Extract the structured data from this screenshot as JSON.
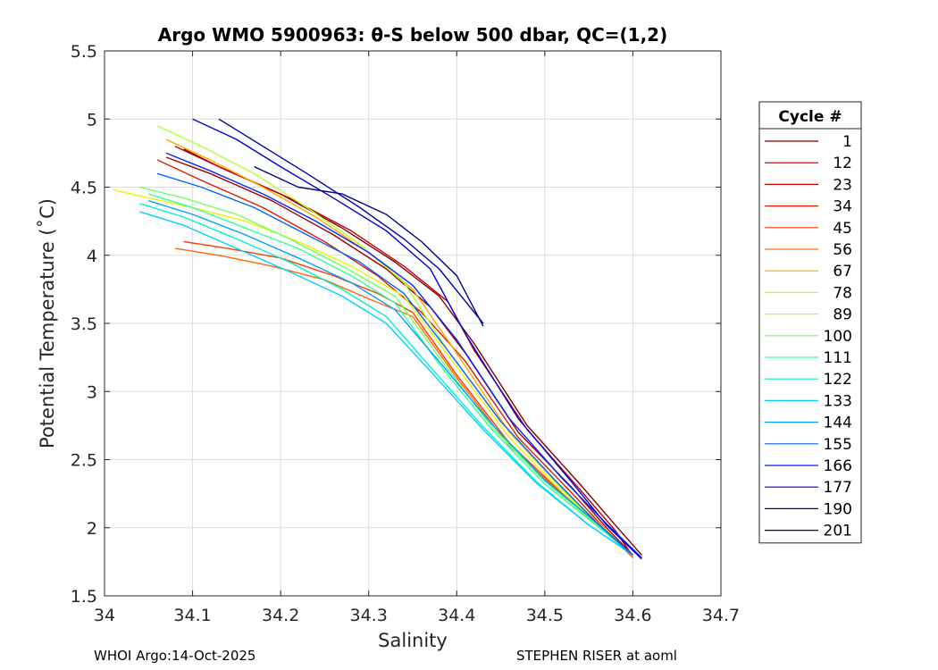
{
  "chart_data": {
    "type": "line",
    "title": "Argo WMO 5900963: θ-S below 500 dbar,  QC=(1,2)",
    "xlabel": "Salinity",
    "ylabel": "Potential Temperature (˚C)",
    "xlim": [
      34.0,
      34.7
    ],
    "ylim": [
      1.5,
      5.5
    ],
    "xticks": [
      34,
      34.1,
      34.2,
      34.3,
      34.4,
      34.5,
      34.6,
      34.7
    ],
    "xtick_labels": [
      "34",
      "34.1",
      "34.2",
      "34.3",
      "34.4",
      "34.5",
      "34.6",
      "34.7"
    ],
    "yticks": [
      1.5,
      2,
      2.5,
      3,
      3.5,
      4,
      4.5,
      5,
      5.5
    ],
    "ytick_labels": [
      "1.5",
      "2",
      "2.5",
      "3",
      "3.5",
      "4",
      "4.5",
      "5",
      "5.5"
    ],
    "grid": true,
    "legend": {
      "title": "Cycle #",
      "placement": "outside-right",
      "entries": [
        {
          "label": "1",
          "color": "#800000"
        },
        {
          "label": "12",
          "color": "#a00000"
        },
        {
          "label": "23",
          "color": "#c00000"
        },
        {
          "label": "34",
          "color": "#e01a00"
        },
        {
          "label": "45",
          "color": "#ff3c00"
        },
        {
          "label": "56",
          "color": "#ff6a00"
        },
        {
          "label": "67",
          "color": "#ffa800"
        },
        {
          "label": "78",
          "color": "#f0f000"
        },
        {
          "label": "89",
          "color": "#b0ff30"
        },
        {
          "label": "100",
          "color": "#70ff60"
        },
        {
          "label": "111",
          "color": "#30ffa0"
        },
        {
          "label": "122",
          "color": "#00f0d0"
        },
        {
          "label": "133",
          "color": "#00d0ff"
        },
        {
          "label": "144",
          "color": "#00a0ff"
        },
        {
          "label": "155",
          "color": "#0064ff"
        },
        {
          "label": "166",
          "color": "#0028ff"
        },
        {
          "label": "177",
          "color": "#0000d8"
        },
        {
          "label": "190",
          "color": "#0000a8"
        },
        {
          "label": "201",
          "color": "#000080"
        }
      ]
    },
    "series": [
      {
        "name": "1",
        "color": "#800000",
        "x": [
          34.09,
          34.13,
          34.2,
          34.27,
          34.33,
          34.38,
          34.42,
          34.48,
          34.54,
          34.58,
          34.61
        ],
        "y": [
          4.78,
          4.65,
          4.45,
          4.2,
          3.95,
          3.7,
          3.35,
          2.75,
          2.32,
          2.02,
          1.8
        ]
      },
      {
        "name": "12",
        "color": "#a00000",
        "x": [
          34.07,
          34.12,
          34.19,
          34.26,
          34.32,
          34.37,
          34.41,
          34.47,
          34.53,
          34.57,
          34.6
        ],
        "y": [
          4.72,
          4.6,
          4.4,
          4.15,
          3.9,
          3.62,
          3.28,
          2.7,
          2.3,
          2.0,
          1.8
        ]
      },
      {
        "name": "23",
        "color": "#c00000",
        "x": [
          34.08,
          34.14,
          34.21,
          34.28,
          34.34,
          34.39,
          34.42,
          34.48,
          34.54,
          34.58,
          34.6
        ],
        "y": [
          4.8,
          4.62,
          4.42,
          4.18,
          3.92,
          3.66,
          3.3,
          2.72,
          2.28,
          1.98,
          1.79
        ]
      },
      {
        "name": "34",
        "color": "#e01a00",
        "x": [
          34.06,
          34.11,
          34.18,
          34.25,
          34.31,
          34.36,
          34.41,
          34.47,
          34.53,
          34.57,
          34.6
        ],
        "y": [
          4.7,
          4.55,
          4.35,
          4.1,
          3.85,
          3.58,
          3.22,
          2.66,
          2.26,
          1.98,
          1.79
        ]
      },
      {
        "name": "45",
        "color": "#ff3c00",
        "x": [
          34.09,
          34.14,
          34.2,
          34.26,
          34.31,
          34.35,
          34.4,
          34.46,
          34.52,
          34.57,
          34.6
        ],
        "y": [
          4.1,
          4.05,
          3.98,
          3.85,
          3.72,
          3.58,
          3.12,
          2.62,
          2.25,
          1.97,
          1.78
        ]
      },
      {
        "name": "56",
        "color": "#ff6a00",
        "x": [
          34.08,
          34.13,
          34.19,
          34.25,
          34.3,
          34.35,
          34.4,
          34.46,
          34.52,
          34.57,
          34.6
        ],
        "y": [
          4.05,
          4.0,
          3.92,
          3.82,
          3.68,
          3.55,
          3.1,
          2.6,
          2.24,
          1.96,
          1.79
        ]
      },
      {
        "name": "67",
        "color": "#ffa800",
        "x": [
          34.07,
          34.12,
          34.18,
          34.24,
          34.3,
          34.35,
          34.4,
          34.46,
          34.52,
          34.57,
          34.6
        ],
        "y": [
          4.85,
          4.7,
          4.5,
          4.28,
          4.02,
          3.75,
          3.28,
          2.7,
          2.28,
          1.98,
          1.79
        ]
      },
      {
        "name": "78",
        "color": "#f0f000",
        "x": [
          34.01,
          34.05,
          34.1,
          34.16,
          34.22,
          34.28,
          34.34,
          34.4,
          34.46,
          34.52,
          34.57,
          34.6
        ],
        "y": [
          4.48,
          4.42,
          4.35,
          4.25,
          4.1,
          3.92,
          3.7,
          3.18,
          2.66,
          2.26,
          1.97,
          1.79
        ]
      },
      {
        "name": "89",
        "color": "#b0ff30",
        "x": [
          34.06,
          34.11,
          34.17,
          34.23,
          34.29,
          34.34,
          34.39,
          34.45,
          34.51,
          34.56,
          34.6
        ],
        "y": [
          4.95,
          4.8,
          4.6,
          4.35,
          4.08,
          3.8,
          3.3,
          2.78,
          2.35,
          2.03,
          1.8
        ]
      },
      {
        "name": "100",
        "color": "#70ff60",
        "x": [
          34.04,
          34.09,
          34.15,
          34.21,
          34.27,
          34.33,
          34.38,
          34.44,
          34.5,
          34.56,
          34.6
        ],
        "y": [
          4.5,
          4.42,
          4.3,
          4.12,
          3.92,
          3.7,
          3.25,
          2.74,
          2.34,
          2.02,
          1.8
        ]
      },
      {
        "name": "111",
        "color": "#30ffa0",
        "x": [
          34.05,
          34.1,
          34.16,
          34.22,
          34.28,
          34.33,
          34.38,
          34.44,
          34.5,
          34.56,
          34.6
        ],
        "y": [
          4.45,
          4.35,
          4.2,
          4.05,
          3.85,
          3.65,
          3.2,
          2.72,
          2.32,
          2.01,
          1.8
        ]
      },
      {
        "name": "122",
        "color": "#00f0d0",
        "x": [
          34.04,
          34.09,
          34.15,
          34.21,
          34.27,
          34.32,
          34.37,
          34.43,
          34.49,
          34.55,
          34.6
        ],
        "y": [
          4.38,
          4.28,
          4.12,
          3.95,
          3.75,
          3.55,
          3.18,
          2.74,
          2.34,
          2.02,
          1.8
        ]
      },
      {
        "name": "133",
        "color": "#00d0ff",
        "x": [
          34.04,
          34.09,
          34.15,
          34.21,
          34.27,
          34.32,
          34.37,
          34.43,
          34.49,
          34.55,
          34.6
        ],
        "y": [
          4.32,
          4.22,
          4.05,
          3.88,
          3.7,
          3.5,
          3.15,
          2.72,
          2.33,
          2.02,
          1.8
        ]
      },
      {
        "name": "144",
        "color": "#00a0ff",
        "x": [
          34.05,
          34.1,
          34.16,
          34.22,
          34.28,
          34.33,
          34.38,
          34.44,
          34.5,
          34.56,
          34.6
        ],
        "y": [
          4.4,
          4.3,
          4.15,
          3.98,
          3.8,
          3.6,
          3.22,
          2.76,
          2.35,
          2.03,
          1.8
        ]
      },
      {
        "name": "155",
        "color": "#0064ff",
        "x": [
          34.06,
          34.11,
          34.17,
          34.23,
          34.29,
          34.34,
          34.39,
          34.45,
          34.51,
          34.56,
          34.6
        ],
        "y": [
          4.6,
          4.5,
          4.35,
          4.15,
          3.95,
          3.72,
          3.3,
          2.78,
          2.36,
          2.03,
          1.8
        ]
      },
      {
        "name": "166",
        "color": "#0028ff",
        "x": [
          34.07,
          34.12,
          34.18,
          34.24,
          34.3,
          34.35,
          34.4,
          34.46,
          34.52,
          34.57,
          34.61
        ],
        "y": [
          4.75,
          4.62,
          4.45,
          4.25,
          4.02,
          3.78,
          3.38,
          2.8,
          2.36,
          2.03,
          1.78
        ]
      },
      {
        "name": "177",
        "color": "#0000d8",
        "x": [
          34.1,
          34.15,
          34.2,
          34.26,
          34.32,
          34.37,
          34.41,
          34.47,
          34.53,
          34.57,
          34.61
        ],
        "y": [
          5.0,
          4.85,
          4.65,
          4.42,
          4.18,
          3.9,
          3.42,
          2.8,
          2.34,
          2.02,
          1.77
        ]
      },
      {
        "name": "190",
        "color": "#0000a8",
        "x": [
          34.13,
          34.18,
          34.23,
          34.29,
          34.34,
          34.38,
          34.43
        ],
        "y": [
          5.0,
          4.8,
          4.6,
          4.35,
          4.12,
          3.9,
          3.5
        ]
      },
      {
        "name": "201",
        "color": "#000080",
        "x": [
          34.17,
          34.22,
          34.27,
          34.32,
          34.36,
          34.4,
          34.43
        ],
        "y": [
          4.65,
          4.5,
          4.45,
          4.3,
          4.1,
          3.85,
          3.48
        ]
      }
    ]
  },
  "footer": {
    "left": "WHOI Argo:14-Oct-2025",
    "right": "STEPHEN RISER at aoml"
  }
}
